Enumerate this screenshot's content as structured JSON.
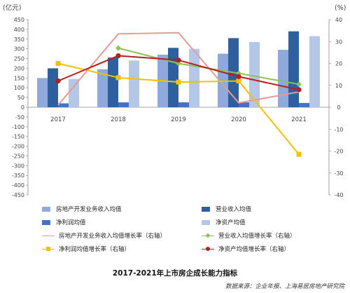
{
  "chart_data": {
    "type": "bar",
    "title": "2017-2021年上市房企成长能力指标",
    "source": "数据来源：企业年报、上海易居房地产研究院",
    "left_axis": {
      "unit": "(亿元)",
      "ylim": [
        -450,
        450
      ],
      "ticks": [
        450,
        400,
        350,
        300,
        250,
        200,
        150,
        100,
        50,
        0,
        -50,
        -100,
        -150,
        -200,
        -250,
        -300,
        -350,
        -400,
        -450
      ],
      "tick_labels": [
        "450",
        "400",
        "350",
        "300",
        "250",
        "200",
        "150",
        "100",
        "50",
        "0",
        "-50",
        "-100",
        "-150",
        "-200",
        "-250",
        "-300",
        "-350",
        "-400",
        "-450"
      ]
    },
    "right_axis": {
      "unit": "(%)",
      "ylim": [
        -40,
        40
      ],
      "ticks": [
        40,
        30,
        20,
        10,
        0,
        -10,
        -20,
        -30,
        -40
      ],
      "tick_labels": [
        "40",
        "30",
        "20",
        "10",
        "0",
        "-10",
        "-20",
        "-30",
        "-40"
      ]
    },
    "categories": [
      "2017",
      "2018",
      "2019",
      "2020",
      "2021"
    ],
    "bar_series": [
      {
        "name": "房地产开发业务收入均值",
        "color": "#8EA9DB",
        "values": [
          150,
          195,
          270,
          275,
          295
        ]
      },
      {
        "name": "营业收入均值",
        "color": "#2E5F9E",
        "values": [
          200,
          255,
          305,
          355,
          390
        ]
      },
      {
        "name": "净利润均值",
        "color": "#4472C4",
        "values": [
          20,
          25,
          25,
          25,
          22
        ]
      },
      {
        "name": "净资产均值",
        "color": "#B4C7E7",
        "values": [
          145,
          240,
          300,
          335,
          365
        ]
      }
    ],
    "line_series": [
      {
        "name": "房地产开发业务收入均值增长率（右轴）",
        "color": "#E69A94",
        "marker": "none",
        "values": [
          1,
          33.5,
          34,
          2,
          7
        ]
      },
      {
        "name": "营业收入均值增长率（右轴）",
        "color": "#8DC057",
        "marker": "diamond",
        "values": [
          null,
          27,
          20,
          15.5,
          10.5
        ]
      },
      {
        "name": "净利润均值增长率（右轴）",
        "color": "#F5C000",
        "marker": "square",
        "values": [
          20,
          13.5,
          11.5,
          12,
          -21.5
        ]
      },
      {
        "name": "净资产均值增长率（右轴）",
        "color": "#B81E1E",
        "marker": "circle",
        "values": [
          12,
          23.5,
          21.5,
          14,
          8
        ]
      }
    ],
    "legend": {
      "placement": "bottom",
      "items": [
        "房地产开发业务收入均值",
        "营业收入均值",
        "净利润均值",
        "净资产均值",
        "房地产开发业务收入均值增长率（右轴）",
        "营业收入均值增长率（右轴）",
        "净利润均值增长率（右轴）",
        "净资产均值增长率（右轴）"
      ]
    },
    "grid": false
  }
}
